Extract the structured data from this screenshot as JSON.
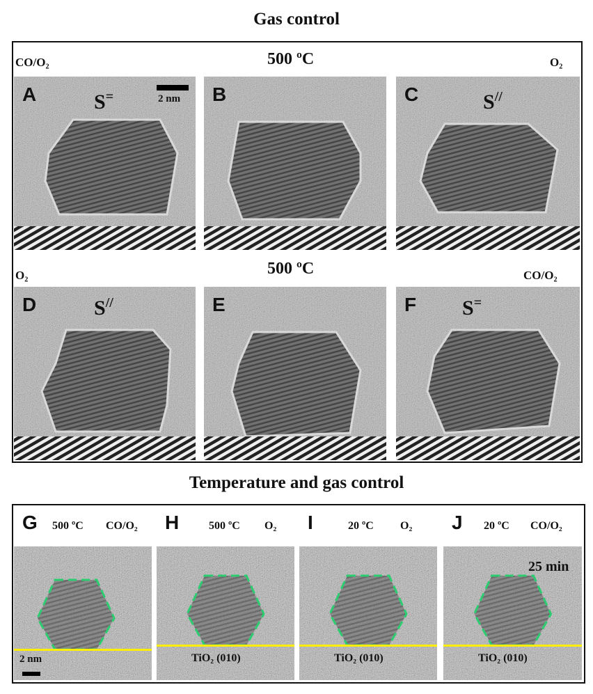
{
  "top_title": "Gas control",
  "bottom_title": "Temperature and gas control",
  "row1": {
    "left": "CO/O₂",
    "center": "500 ºC",
    "right": "O₂"
  },
  "row2": {
    "left": "O₂",
    "center": "500 ºC",
    "right": "CO/O₂"
  },
  "panels": {
    "A": {
      "letter": "A",
      "symbol": "S",
      "sup": "=",
      "scale": "2 nm"
    },
    "B": {
      "letter": "B"
    },
    "C": {
      "letter": "C",
      "symbol": "S",
      "sup": "//"
    },
    "D": {
      "letter": "D",
      "symbol": "S",
      "sup": "//"
    },
    "E": {
      "letter": "E"
    },
    "F": {
      "letter": "F",
      "symbol": "S",
      "sup": "="
    },
    "G": {
      "letter": "G",
      "temp": "500 ºC",
      "gas": "CO/O₂",
      "scale": "2 nm"
    },
    "H": {
      "letter": "H",
      "temp": "500 ºC",
      "gas": "O₂",
      "substrate": "TiO₂ (010)"
    },
    "I": {
      "letter": "I",
      "temp": "20 ºC",
      "gas": "O₂",
      "substrate": "TiO₂ (010)"
    },
    "J": {
      "letter": "J",
      "temp": "20 ºC",
      "gas": "CO/O₂",
      "substrate": "TiO₂ (010)",
      "time": "25 min"
    }
  },
  "colors": {
    "outline": "#2ecc71",
    "interface_line": "#ffee00"
  }
}
